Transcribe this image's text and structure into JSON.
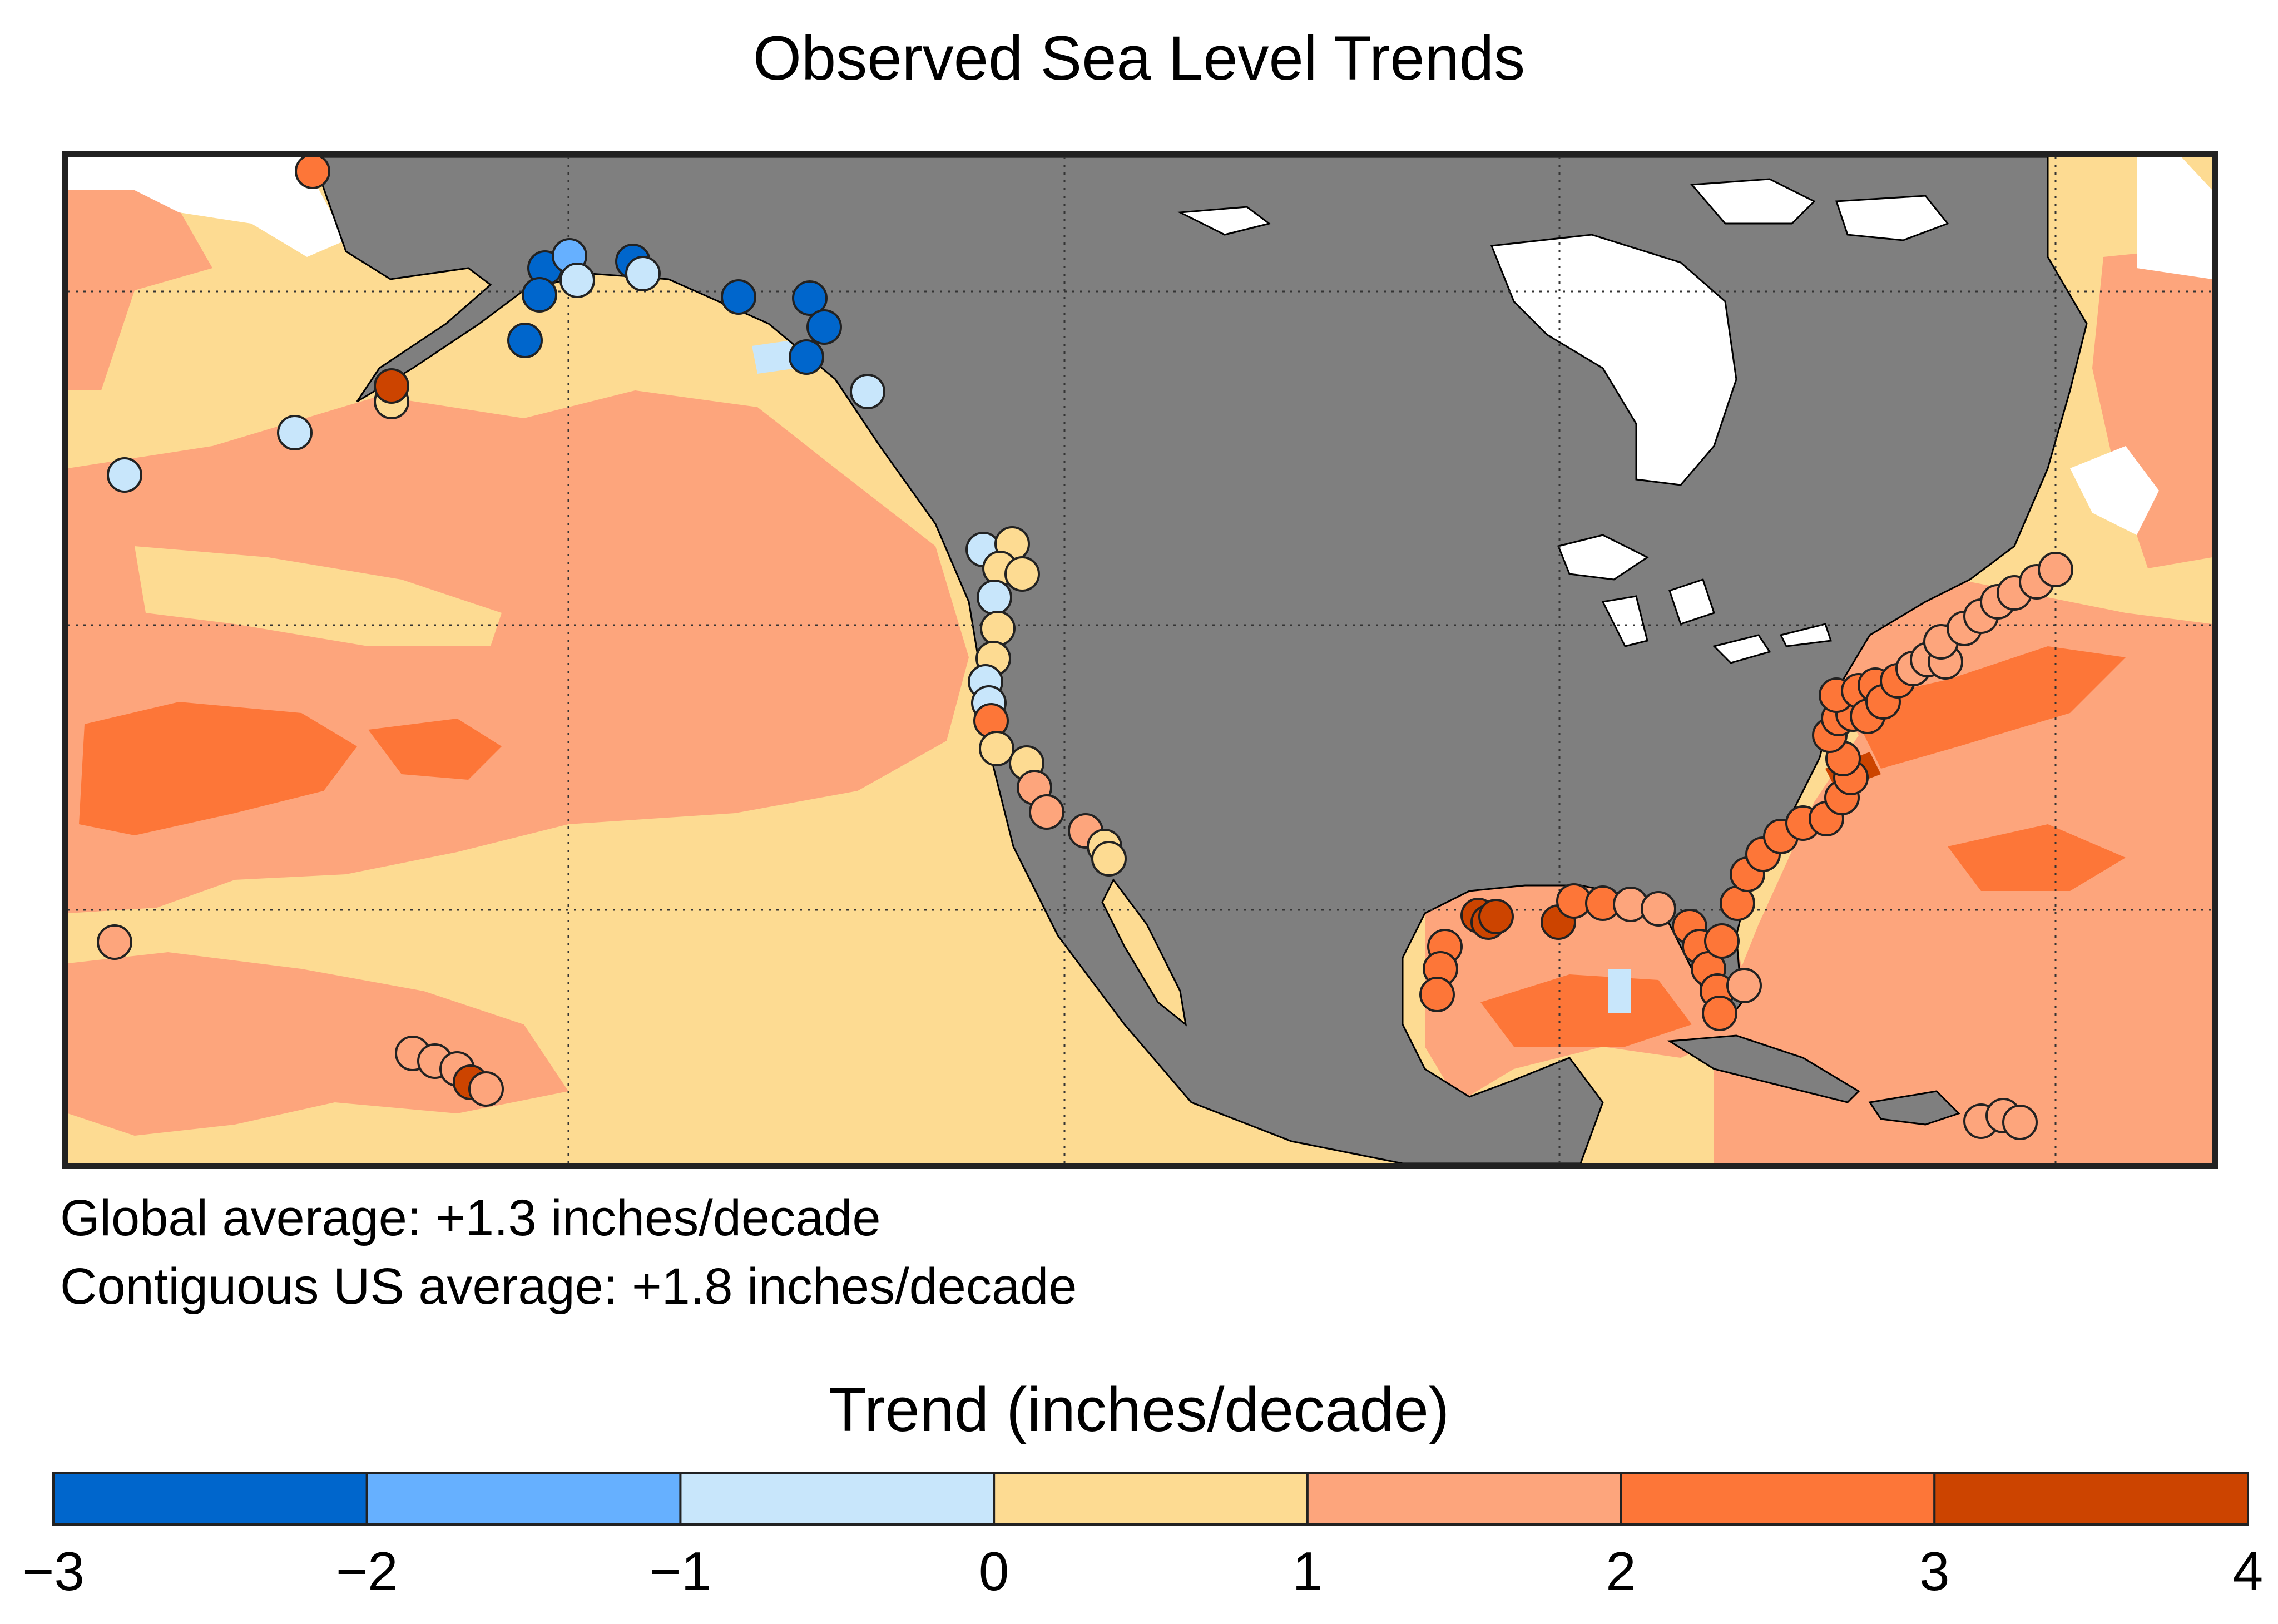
{
  "title": "Observed Sea Level Trends",
  "notes": {
    "global": "Global average: +1.3 inches/decade",
    "us": "Contiguous US average: +1.8 inches/decade"
  },
  "legend": {
    "title": "Trend (inches/decade)",
    "bins": [
      {
        "min": -3,
        "max": -2,
        "color": "#0066cc"
      },
      {
        "min": -2,
        "max": -1,
        "color": "#66b0ff"
      },
      {
        "min": -1,
        "max": 0,
        "color": "#c8e6fb"
      },
      {
        "min": 0,
        "max": 1,
        "color": "#fddb92"
      },
      {
        "min": 1,
        "max": 2,
        "color": "#fda57c"
      },
      {
        "min": 2,
        "max": 3,
        "color": "#fd7638"
      },
      {
        "min": 3,
        "max": 4,
        "color": "#cc4400"
      }
    ],
    "ticks": [
      "−3",
      "−2",
      "−1",
      "0",
      "1",
      "2",
      "3",
      "4"
    ]
  },
  "map": {
    "land_color": "#7f7f7f",
    "ice_color": "#ffffff",
    "gridlines": "dotted"
  }
}
